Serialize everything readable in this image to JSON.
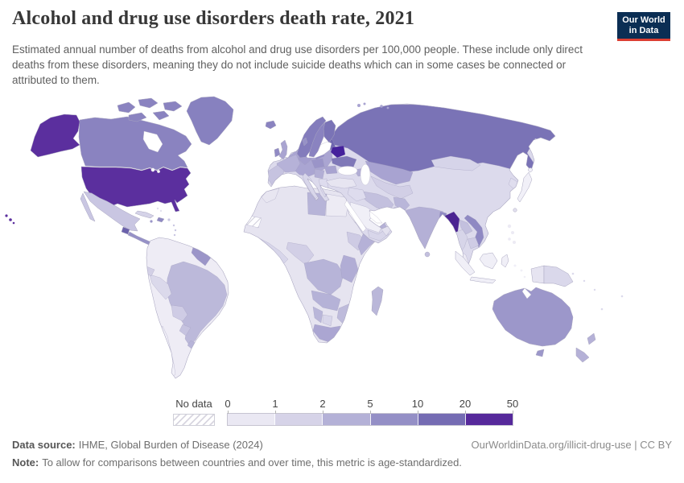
{
  "header": {
    "title": "Alcohol and drug use disorders death rate, 2021",
    "subtitle": "Estimated annual number of deaths from alcohol and drug use disorders per 100,000 people. These include only direct deaths from these disorders, meaning they do not include suicide deaths which can in some cases be connected or attributed to them.",
    "logo_line1": "Our World",
    "logo_line2": "in Data",
    "logo_bg_color": "#0b2e54",
    "logo_accent_color": "#dc3e32"
  },
  "legend": {
    "no_data_label": "No data",
    "ticks": [
      "0",
      "1",
      "2",
      "5",
      "10",
      "20",
      "50"
    ],
    "colors": [
      "#eae8f3",
      "#d6d3e8",
      "#b4b1d7",
      "#948fc6",
      "#756cb3",
      "#56299b"
    ],
    "no_data_hatch": {
      "bg": "#ffffff",
      "line": "#d8d6e0"
    }
  },
  "footer": {
    "source_label": "Data source:",
    "source": "IHME, Global Burden of Disease (2024)",
    "note_label": "Note:",
    "note": "To allow for comparisons between countries and over time, this metric is age-standardized.",
    "link": "OurWorldinData.org/illicit-drug-use",
    "license": " | CC BY"
  },
  "chart_data": {
    "type": "heatmap",
    "title": "Alcohol and drug use disorders death rate, 2021",
    "unit": "deaths per 100,000 people",
    "scale_ticks": [
      0,
      1,
      2,
      5,
      10,
      20,
      50
    ],
    "scale_colors": [
      "#eae8f3",
      "#d6d3e8",
      "#b4b1d7",
      "#948fc6",
      "#756cb3",
      "#56299b"
    ],
    "no_data_label": "No data"
  },
  "map": {
    "ocean_color": "#ffffff",
    "border_color": "#a9a6c0",
    "regions": [
      {
        "id": "united-states",
        "color": "#5b2f9e"
      },
      {
        "id": "canada",
        "color": "#8a83c0"
      },
      {
        "id": "greenland",
        "color": "#8781bf"
      },
      {
        "id": "mexico",
        "color": "#c9c6e2"
      },
      {
        "id": "guatemala",
        "color": "#6b61ab"
      },
      {
        "id": "central-america",
        "color": "#9691c7"
      },
      {
        "id": "panama",
        "color": "#8f89c3"
      },
      {
        "id": "cuba",
        "color": "#d5d3e8"
      },
      {
        "id": "hispaniola",
        "color": "#8f89c3"
      },
      {
        "id": "jamaica",
        "color": "#9a95c8"
      },
      {
        "id": "puerto-rico",
        "color": "#c9c6e2"
      },
      {
        "id": "bahamas",
        "color": "#e3e1ef"
      },
      {
        "id": "lesser-antilles",
        "color": "#c9c6e2"
      },
      {
        "id": "south-america-base",
        "color": "#eeecf5"
      },
      {
        "id": "guyanas",
        "color": "#9b95c8"
      },
      {
        "id": "brazil",
        "color": "#bcb9da"
      },
      {
        "id": "peru",
        "color": "#dbd9eb"
      },
      {
        "id": "ecuador",
        "color": "#d3d0e6"
      },
      {
        "id": "bolivia",
        "color": "#cfcce5"
      },
      {
        "id": "paraguay",
        "color": "#c6c3e0"
      },
      {
        "id": "uruguay",
        "color": "#b7b4d8"
      },
      {
        "id": "chile",
        "color": "#f1f0f8"
      },
      {
        "id": "eurasia-base",
        "color": "#dcdaec"
      },
      {
        "id": "russia",
        "color": "#7a73b6"
      },
      {
        "id": "europe-core",
        "color": "#aaa5d2"
      },
      {
        "id": "germany",
        "color": "#a39dce"
      },
      {
        "id": "france",
        "color": "#b6b2d8"
      },
      {
        "id": "poland",
        "color": "#938dc6"
      },
      {
        "id": "baltic-states",
        "color": "#6f67b0"
      },
      {
        "id": "belarus",
        "color": "#45219c"
      },
      {
        "id": "ukraine",
        "color": "#7f78b8"
      },
      {
        "id": "central-europe",
        "color": "#9a94c8"
      },
      {
        "id": "romania",
        "color": "#a8a3d0"
      },
      {
        "id": "balkans",
        "color": "#b2aed5"
      },
      {
        "id": "greece",
        "color": "#dedcee"
      },
      {
        "id": "iberia",
        "color": "#c6c3e0"
      },
      {
        "id": "italy",
        "color": "#d8d6ea"
      },
      {
        "id": "turkey",
        "color": "#e7e5f1"
      },
      {
        "id": "caucasus",
        "color": "#b2aed5"
      },
      {
        "id": "kazakhstan",
        "color": "#a8a3d1"
      },
      {
        "id": "central-asia",
        "color": "#d2cfe6"
      },
      {
        "id": "iran",
        "color": "#c3c0de"
      },
      {
        "id": "iraq-syria",
        "color": "#dedcee"
      },
      {
        "id": "saudi-arabia",
        "color": "#f0eff7"
      },
      {
        "id": "yemen",
        "color": "#d8d6ea"
      },
      {
        "id": "oman",
        "color": "#e3e1ef"
      },
      {
        "id": "afghanistan",
        "color": "#b9b6d9"
      },
      {
        "id": "pakistan",
        "color": "#c9c6e2"
      },
      {
        "id": "india",
        "color": "#b4b0d6"
      },
      {
        "id": "bangladesh",
        "color": "#8f89c3"
      },
      {
        "id": "mongolia",
        "color": "#d6d4e9"
      },
      {
        "id": "korea",
        "color": "#dfddee"
      },
      {
        "id": "myanmar",
        "color": "#4b2492"
      },
      {
        "id": "thailand",
        "color": "#d7d5e9"
      },
      {
        "id": "laos",
        "color": "#c3c0de"
      },
      {
        "id": "vietnam",
        "color": "#8f89c3"
      },
      {
        "id": "cambodia",
        "color": "#cfcce5"
      },
      {
        "id": "malaysia",
        "color": "#eceaf4"
      },
      {
        "id": "norway",
        "color": "#837cbc"
      },
      {
        "id": "sweden",
        "color": "#8a83c0"
      },
      {
        "id": "finland",
        "color": "#7a73b6"
      },
      {
        "id": "denmark",
        "color": "#9691c7"
      },
      {
        "id": "united-kingdom",
        "color": "#a9a4d1"
      },
      {
        "id": "ireland",
        "color": "#918bc4"
      },
      {
        "id": "iceland",
        "color": "#8a83c0"
      },
      {
        "id": "svalbard",
        "color": "#a9a4d1"
      },
      {
        "id": "japan",
        "color": "#f1f0f8"
      },
      {
        "id": "taiwan",
        "color": "#e3e1ef"
      },
      {
        "id": "philippines",
        "color": "#eceaf4"
      },
      {
        "id": "sri-lanka",
        "color": "#c3c0de"
      },
      {
        "id": "indonesia",
        "color": "#f0eff7"
      },
      {
        "id": "west-papua",
        "color": "#e6e4f1"
      },
      {
        "id": "papua-new-guinea",
        "color": "#dad8eb"
      },
      {
        "id": "africa-base",
        "color": "#e6e4f0"
      },
      {
        "id": "western-sahara",
        "color": "hatch"
      },
      {
        "id": "morocco",
        "color": "#e8e6f1"
      },
      {
        "id": "libya",
        "color": "#b7b4d8"
      },
      {
        "id": "egypt",
        "color": "#edebf4"
      },
      {
        "id": "west-africa",
        "color": "#d8d6ea"
      },
      {
        "id": "nigeria",
        "color": "#d2cfe6"
      },
      {
        "id": "ethiopia",
        "color": "#cecbe4"
      },
      {
        "id": "somalia",
        "color": "#b5b1d7"
      },
      {
        "id": "central-africa",
        "color": "#b7b4d8"
      },
      {
        "id": "kenya-tanzania",
        "color": "#b1add5"
      },
      {
        "id": "angola-zambia",
        "color": "#b5b2d7"
      },
      {
        "id": "mozambique-zimbabwe",
        "color": "#bebbdb"
      },
      {
        "id": "namibia",
        "color": "#b9b6d9"
      },
      {
        "id": "botswana",
        "color": "#d8d6ea"
      },
      {
        "id": "south-africa",
        "color": "#aba6d2"
      },
      {
        "id": "madagascar",
        "color": "#bab7d9"
      },
      {
        "id": "australia",
        "color": "#9c97ca"
      },
      {
        "id": "tasmania",
        "color": "#9c97ca"
      },
      {
        "id": "new-zealand",
        "color": "#b5b1d7"
      },
      {
        "id": "pacific-islands",
        "color": "#dcdaec"
      }
    ]
  }
}
